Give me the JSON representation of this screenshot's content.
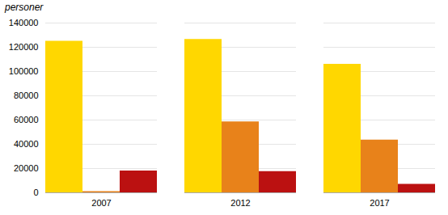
{
  "chart_data": {
    "type": "bar",
    "annotation": "personer",
    "categories": [
      "2007",
      "2012",
      "2017"
    ],
    "series": [
      {
        "color": "#FFD700",
        "values": [
          125000,
          126500,
          106000
        ]
      },
      {
        "color": "#E8821A",
        "values": [
          1000,
          58500,
          43500
        ]
      },
      {
        "color": "#BB1111",
        "values": [
          18000,
          17500,
          7000
        ]
      }
    ],
    "ylim": [
      0,
      140000
    ],
    "yticks": [
      0,
      20000,
      40000,
      60000,
      80000,
      100000,
      120000,
      140000
    ],
    "grid": true
  }
}
